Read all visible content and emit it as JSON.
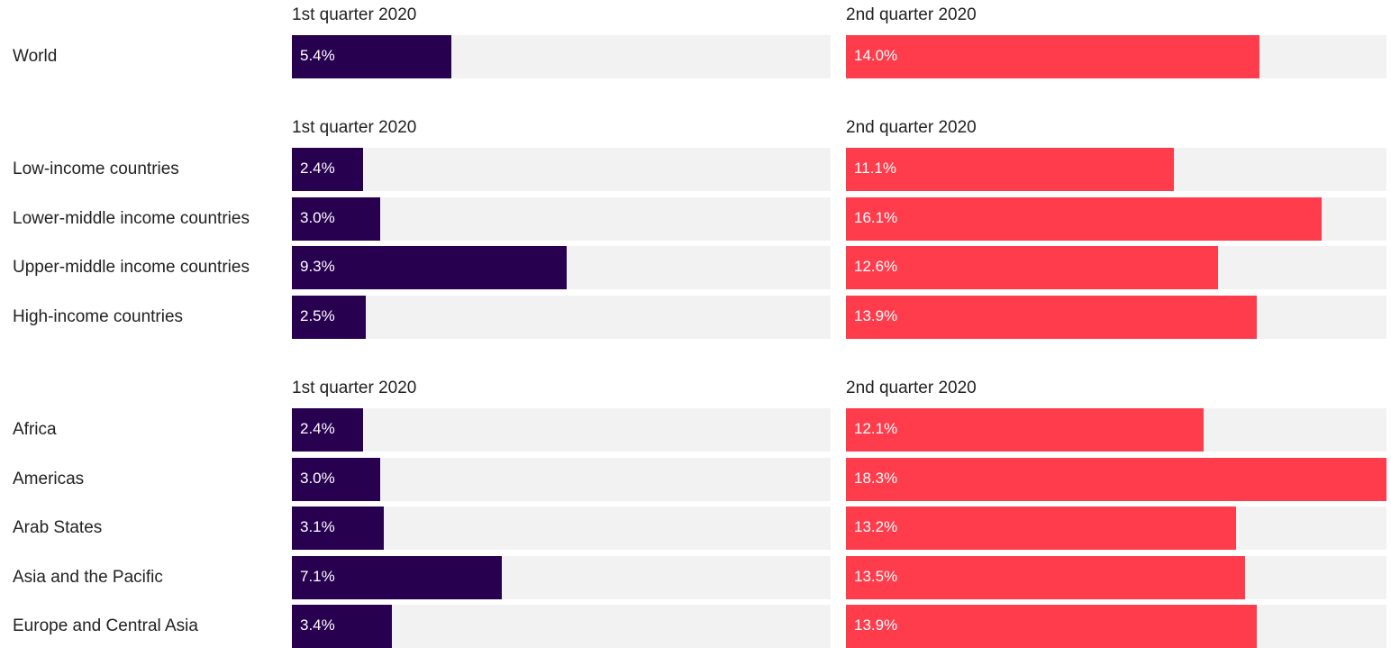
{
  "colors": {
    "q1": "#280050",
    "q2": "#ff3c4b",
    "track": "#f2f2f2"
  },
  "chart_data": {
    "type": "bar",
    "orientation": "horizontal",
    "max": 18.3,
    "series_names": [
      "1st quarter 2020",
      "2nd quarter 2020"
    ],
    "groups": [
      {
        "col1_header": "1st quarter 2020",
        "col2_header": "2nd quarter 2020",
        "rows": [
          {
            "label": "World",
            "q1": 5.4,
            "q1_label": "5.4%",
            "q2": 14.0,
            "q2_label": "14.0%"
          }
        ]
      },
      {
        "col1_header": "1st quarter 2020",
        "col2_header": "2nd quarter 2020",
        "rows": [
          {
            "label": "Low-income countries",
            "q1": 2.4,
            "q1_label": "2.4%",
            "q2": 11.1,
            "q2_label": "11.1%"
          },
          {
            "label": "Lower-middle income countries",
            "q1": 3.0,
            "q1_label": "3.0%",
            "q2": 16.1,
            "q2_label": "16.1%"
          },
          {
            "label": "Upper-middle income countries",
            "q1": 9.3,
            "q1_label": "9.3%",
            "q2": 12.6,
            "q2_label": "12.6%"
          },
          {
            "label": "High-income countries",
            "q1": 2.5,
            "q1_label": "2.5%",
            "q2": 13.9,
            "q2_label": "13.9%"
          }
        ]
      },
      {
        "col1_header": "1st quarter 2020",
        "col2_header": "2nd quarter 2020",
        "rows": [
          {
            "label": "Africa",
            "q1": 2.4,
            "q1_label": "2.4%",
            "q2": 12.1,
            "q2_label": "12.1%"
          },
          {
            "label": "Americas",
            "q1": 3.0,
            "q1_label": "3.0%",
            "q2": 18.3,
            "q2_label": "18.3%"
          },
          {
            "label": "Arab States",
            "q1": 3.1,
            "q1_label": "3.1%",
            "q2": 13.2,
            "q2_label": "13.2%"
          },
          {
            "label": "Asia and the Pacific",
            "q1": 7.1,
            "q1_label": "7.1%",
            "q2": 13.5,
            "q2_label": "13.5%"
          },
          {
            "label": "Europe and Central Asia",
            "q1": 3.4,
            "q1_label": "3.4%",
            "q2": 13.9,
            "q2_label": "13.9%"
          }
        ]
      }
    ]
  }
}
